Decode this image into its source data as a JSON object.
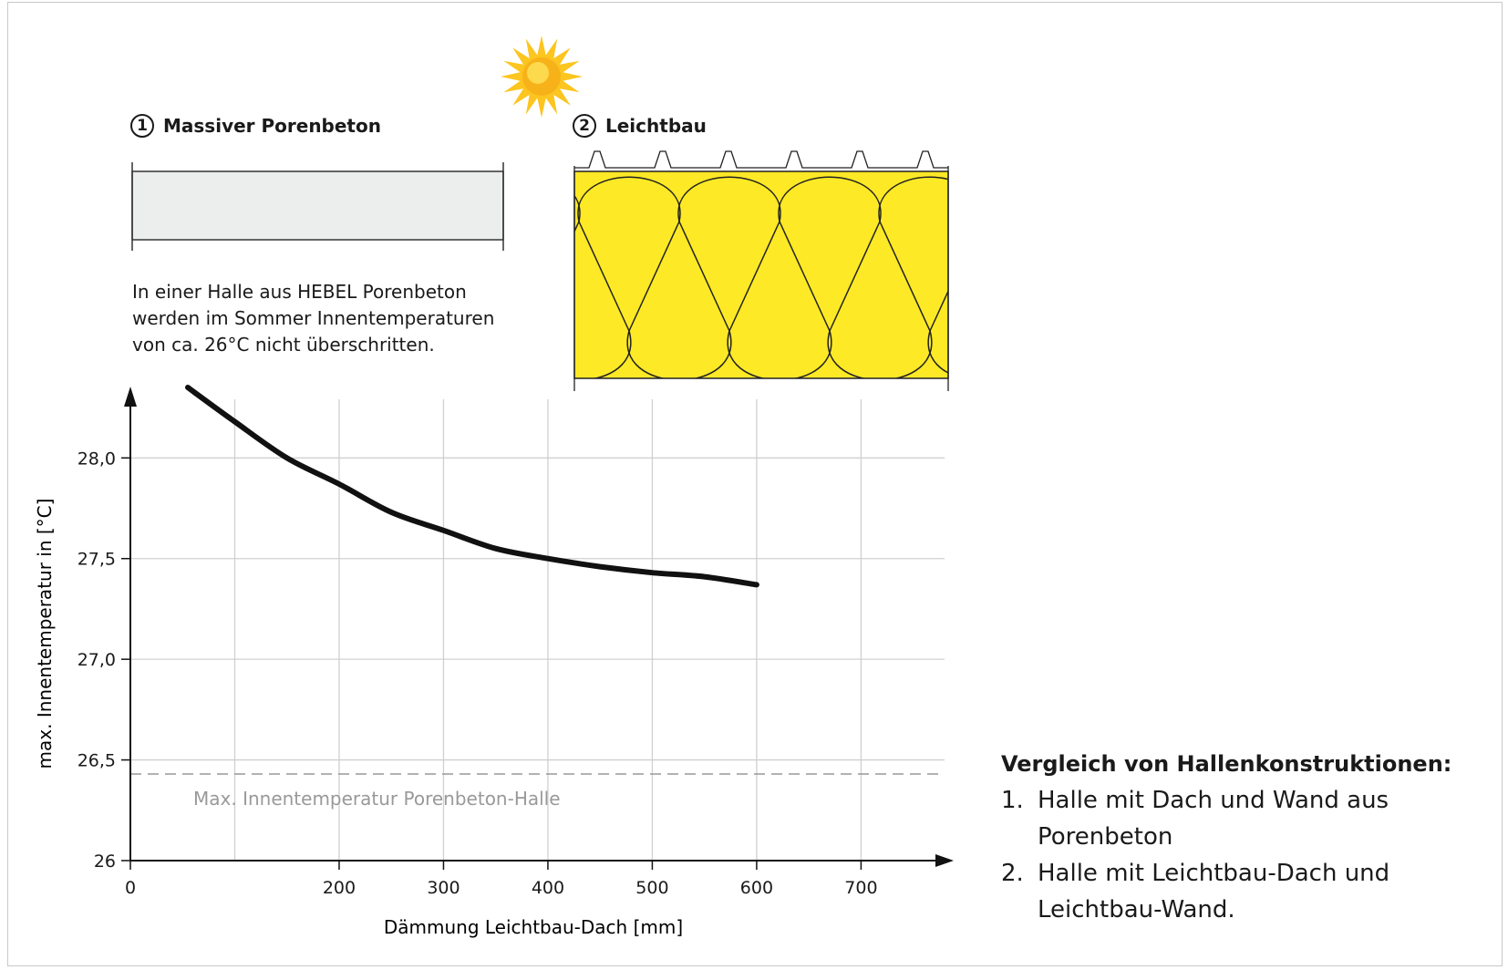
{
  "panel1": {
    "number": "1",
    "title": "Massiver Porenbeton"
  },
  "panel2": {
    "number": "2",
    "title": "Leichtbau"
  },
  "description_lines": [
    "In einer Halle aus HEBEL Porenbeton",
    "werden im Sommer Innentemperaturen",
    "von ca. 26°C nicht überschritten."
  ],
  "legend": {
    "title": "Vergleich von Hallenkonstruktionen:",
    "items": [
      {
        "num": "1.",
        "text": "Halle mit Dach und Wand aus Porenbeton"
      },
      {
        "num": "2.",
        "text": "Halle mit Leichtbau-Dach und Leichtbau-Wand."
      }
    ]
  },
  "colors": {
    "insulation_yellow": "#fde925",
    "concrete_gray": "#eceded",
    "sun": "#fcc51f",
    "grid": "#d0d0d0",
    "reference_line": "#999999",
    "curve": "#111111"
  },
  "icons": [
    "sun-icon"
  ],
  "chart_data": {
    "type": "line",
    "xlabel": "Dämmung Leichtbau-Dach [mm]",
    "ylabel": "max. Innentemperatur in [°C]",
    "xlim": [
      0,
      780
    ],
    "ylim": [
      26.0,
      28.35
    ],
    "x_ticks": [
      0,
      200,
      300,
      400,
      500,
      600,
      700
    ],
    "x_tick_labels": [
      "0",
      "200",
      "300",
      "400",
      "500",
      "600",
      "700"
    ],
    "y_ticks": [
      26.0,
      26.5,
      27.0,
      27.5,
      28.0
    ],
    "y_tick_labels": [
      "26",
      "26,5",
      "27,0",
      "27,5",
      "28,0"
    ],
    "x_gridlines": [
      100,
      200,
      300,
      400,
      500,
      600,
      700
    ],
    "grid": true,
    "series": [
      {
        "x": [
          55,
          100,
          150,
          200,
          250,
          300,
          350,
          400,
          450,
          500,
          550,
          600
        ],
        "values": [
          28.35,
          28.18,
          28.0,
          27.87,
          27.73,
          27.64,
          27.55,
          27.5,
          27.46,
          27.43,
          27.41,
          27.37
        ]
      }
    ],
    "reference": {
      "value": 26.43,
      "label": "Max. Innentemperatur Porenbeton-Halle"
    }
  }
}
